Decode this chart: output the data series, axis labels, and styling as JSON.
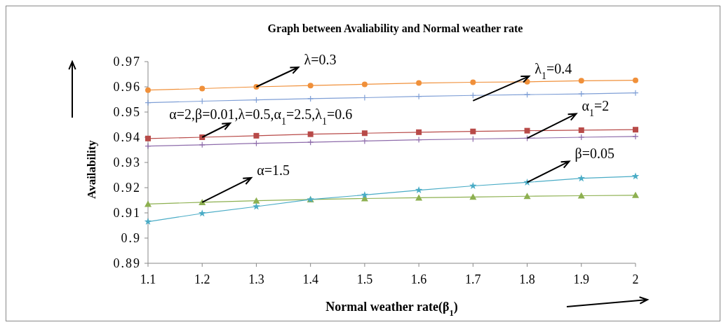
{
  "chart_data": {
    "type": "line",
    "title": "Graph between Avaliability and Normal weather rate",
    "xlabel": "Normal weather rate(β$_{1}$)",
    "ylabel": "Availability",
    "x": [
      1.1,
      1.2,
      1.3,
      1.4,
      1.5,
      1.6,
      1.7,
      1.8,
      1.9,
      2
    ],
    "xlim": [
      1.1,
      2
    ],
    "xticks": [
      1.1,
      1.2,
      1.3,
      1.4,
      1.5,
      1.6,
      1.7,
      1.8,
      1.9,
      2
    ],
    "ylim": [
      0.89,
      0.97
    ],
    "yticks": [
      0.89,
      0.9,
      0.91,
      0.92,
      0.93,
      0.94,
      0.95,
      0.96,
      0.97
    ],
    "grid": false,
    "line_style": "solid",
    "series": [
      {
        "color": "#f0903a",
        "marker": "circle",
        "values": [
          0.9587,
          0.9593,
          0.96,
          0.9605,
          0.961,
          0.9615,
          0.9618,
          0.962,
          0.9624,
          0.9626
        ]
      },
      {
        "color": "#7f9fd6",
        "marker": "cross",
        "values": [
          0.9537,
          0.9543,
          0.9548,
          0.9553,
          0.9557,
          0.9562,
          0.9566,
          0.9569,
          0.9572,
          0.9576
        ]
      },
      {
        "color": "#b84a48",
        "marker": "square",
        "values": [
          0.9395,
          0.94,
          0.9406,
          0.9412,
          0.9416,
          0.942,
          0.9423,
          0.9426,
          0.9428,
          0.943
        ]
      },
      {
        "color": "#8e6cab",
        "marker": "cross",
        "values": [
          0.9365,
          0.937,
          0.9376,
          0.938,
          0.9385,
          0.939,
          0.9393,
          0.9396,
          0.94,
          0.9403
        ]
      },
      {
        "color": "#8db050",
        "marker": "triangle",
        "values": [
          0.9135,
          0.9142,
          0.9148,
          0.9153,
          0.9157,
          0.916,
          0.9163,
          0.9166,
          0.9168,
          0.917
        ]
      },
      {
        "color": "#4aacc6",
        "marker": "star",
        "values": [
          0.9065,
          0.9098,
          0.9125,
          0.9153,
          0.9171,
          0.919,
          0.9207,
          0.9221,
          0.9237,
          0.9245
        ]
      }
    ],
    "annotations": [
      {
        "text": "λ=0.3",
        "x": 1.3,
        "y": 0.96
      },
      {
        "text": "λ$_{1}$=0.4",
        "x": 1.7,
        "y": 0.9545
      },
      {
        "text": "α=2,β=0.01,λ=0.5,α$_{1}$=2.5,λ$_{1}$=0.6",
        "x": 1.2,
        "y": 0.94
      },
      {
        "text": "α$_{1}$=2",
        "x": 1.8,
        "y": 0.9396
      },
      {
        "text": "α=1.5",
        "x": 1.2,
        "y": 0.9142
      },
      {
        "text": "β=0.05",
        "x": 1.8,
        "y": 0.9221
      }
    ]
  }
}
